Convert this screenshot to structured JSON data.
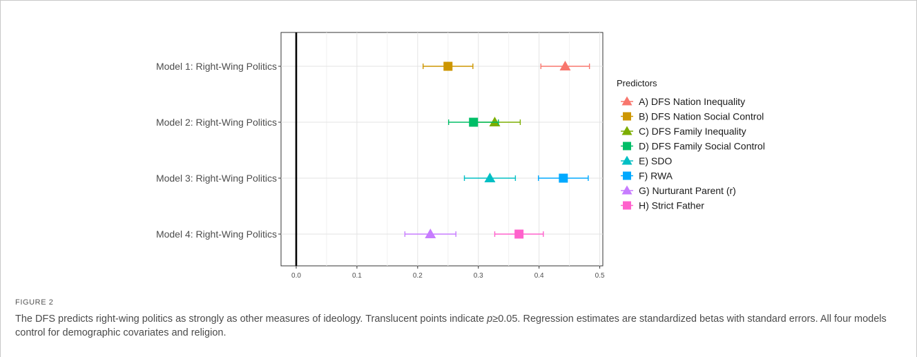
{
  "figure": {
    "label": "FIGURE 2",
    "caption_parts": [
      "The DFS predicts right-wing politics as strongly as other measures of ideology. Translucent points indicate ",
      "p",
      "≥0.05. Regression estimates are standardized betas with standard errors. All four models control for demographic covariates and religion."
    ]
  },
  "chart_data": {
    "type": "scatter",
    "subtype": "coefficient-plot",
    "title": "",
    "xlabel": "",
    "ylabel": "",
    "xlim": [
      -0.025,
      0.505
    ],
    "x_ticks": [
      0.0,
      0.1,
      0.2,
      0.3,
      0.4,
      0.5
    ],
    "x_tick_labels": [
      "0.0",
      "0.1",
      "0.2",
      "0.3",
      "0.4",
      "0.5"
    ],
    "reference_line_x": 0,
    "grid": true,
    "legend_title": "Predictors",
    "legend_position": "right",
    "categories": [
      "Model 1: Right-Wing Politics",
      "Model 2: Right-Wing Politics",
      "Model 3: Right-Wing Politics",
      "Model 4: Right-Wing Politics"
    ],
    "series": [
      {
        "name": "A) DFS Nation Inequality",
        "shape": "triangle",
        "color": "#F8766D",
        "model": 1,
        "estimate": 0.443,
        "low": 0.403,
        "high": 0.483
      },
      {
        "name": "B) DFS Nation Social Control",
        "shape": "square",
        "color": "#CD9600",
        "model": 1,
        "estimate": 0.25,
        "low": 0.209,
        "high": 0.291
      },
      {
        "name": "C) DFS Family Inequality",
        "shape": "triangle",
        "color": "#7CAE00",
        "model": 2,
        "estimate": 0.327,
        "low": 0.286,
        "high": 0.369
      },
      {
        "name": "D) DFS Family Social Control",
        "shape": "square",
        "color": "#00BE67",
        "model": 2,
        "estimate": 0.292,
        "low": 0.251,
        "high": 0.333
      },
      {
        "name": "E) SDO",
        "shape": "triangle",
        "color": "#00BFC4",
        "model": 3,
        "estimate": 0.319,
        "low": 0.277,
        "high": 0.361
      },
      {
        "name": "F) RWA",
        "shape": "square",
        "color": "#00A9FF",
        "model": 3,
        "estimate": 0.44,
        "low": 0.399,
        "high": 0.481
      },
      {
        "name": "G) Nurturant Parent (r)",
        "shape": "triangle",
        "color": "#C77CFF",
        "model": 4,
        "estimate": 0.221,
        "low": 0.179,
        "high": 0.263
      },
      {
        "name": "H) Strict Father",
        "shape": "square",
        "color": "#FF61CC",
        "model": 4,
        "estimate": 0.367,
        "low": 0.327,
        "high": 0.407
      }
    ]
  }
}
